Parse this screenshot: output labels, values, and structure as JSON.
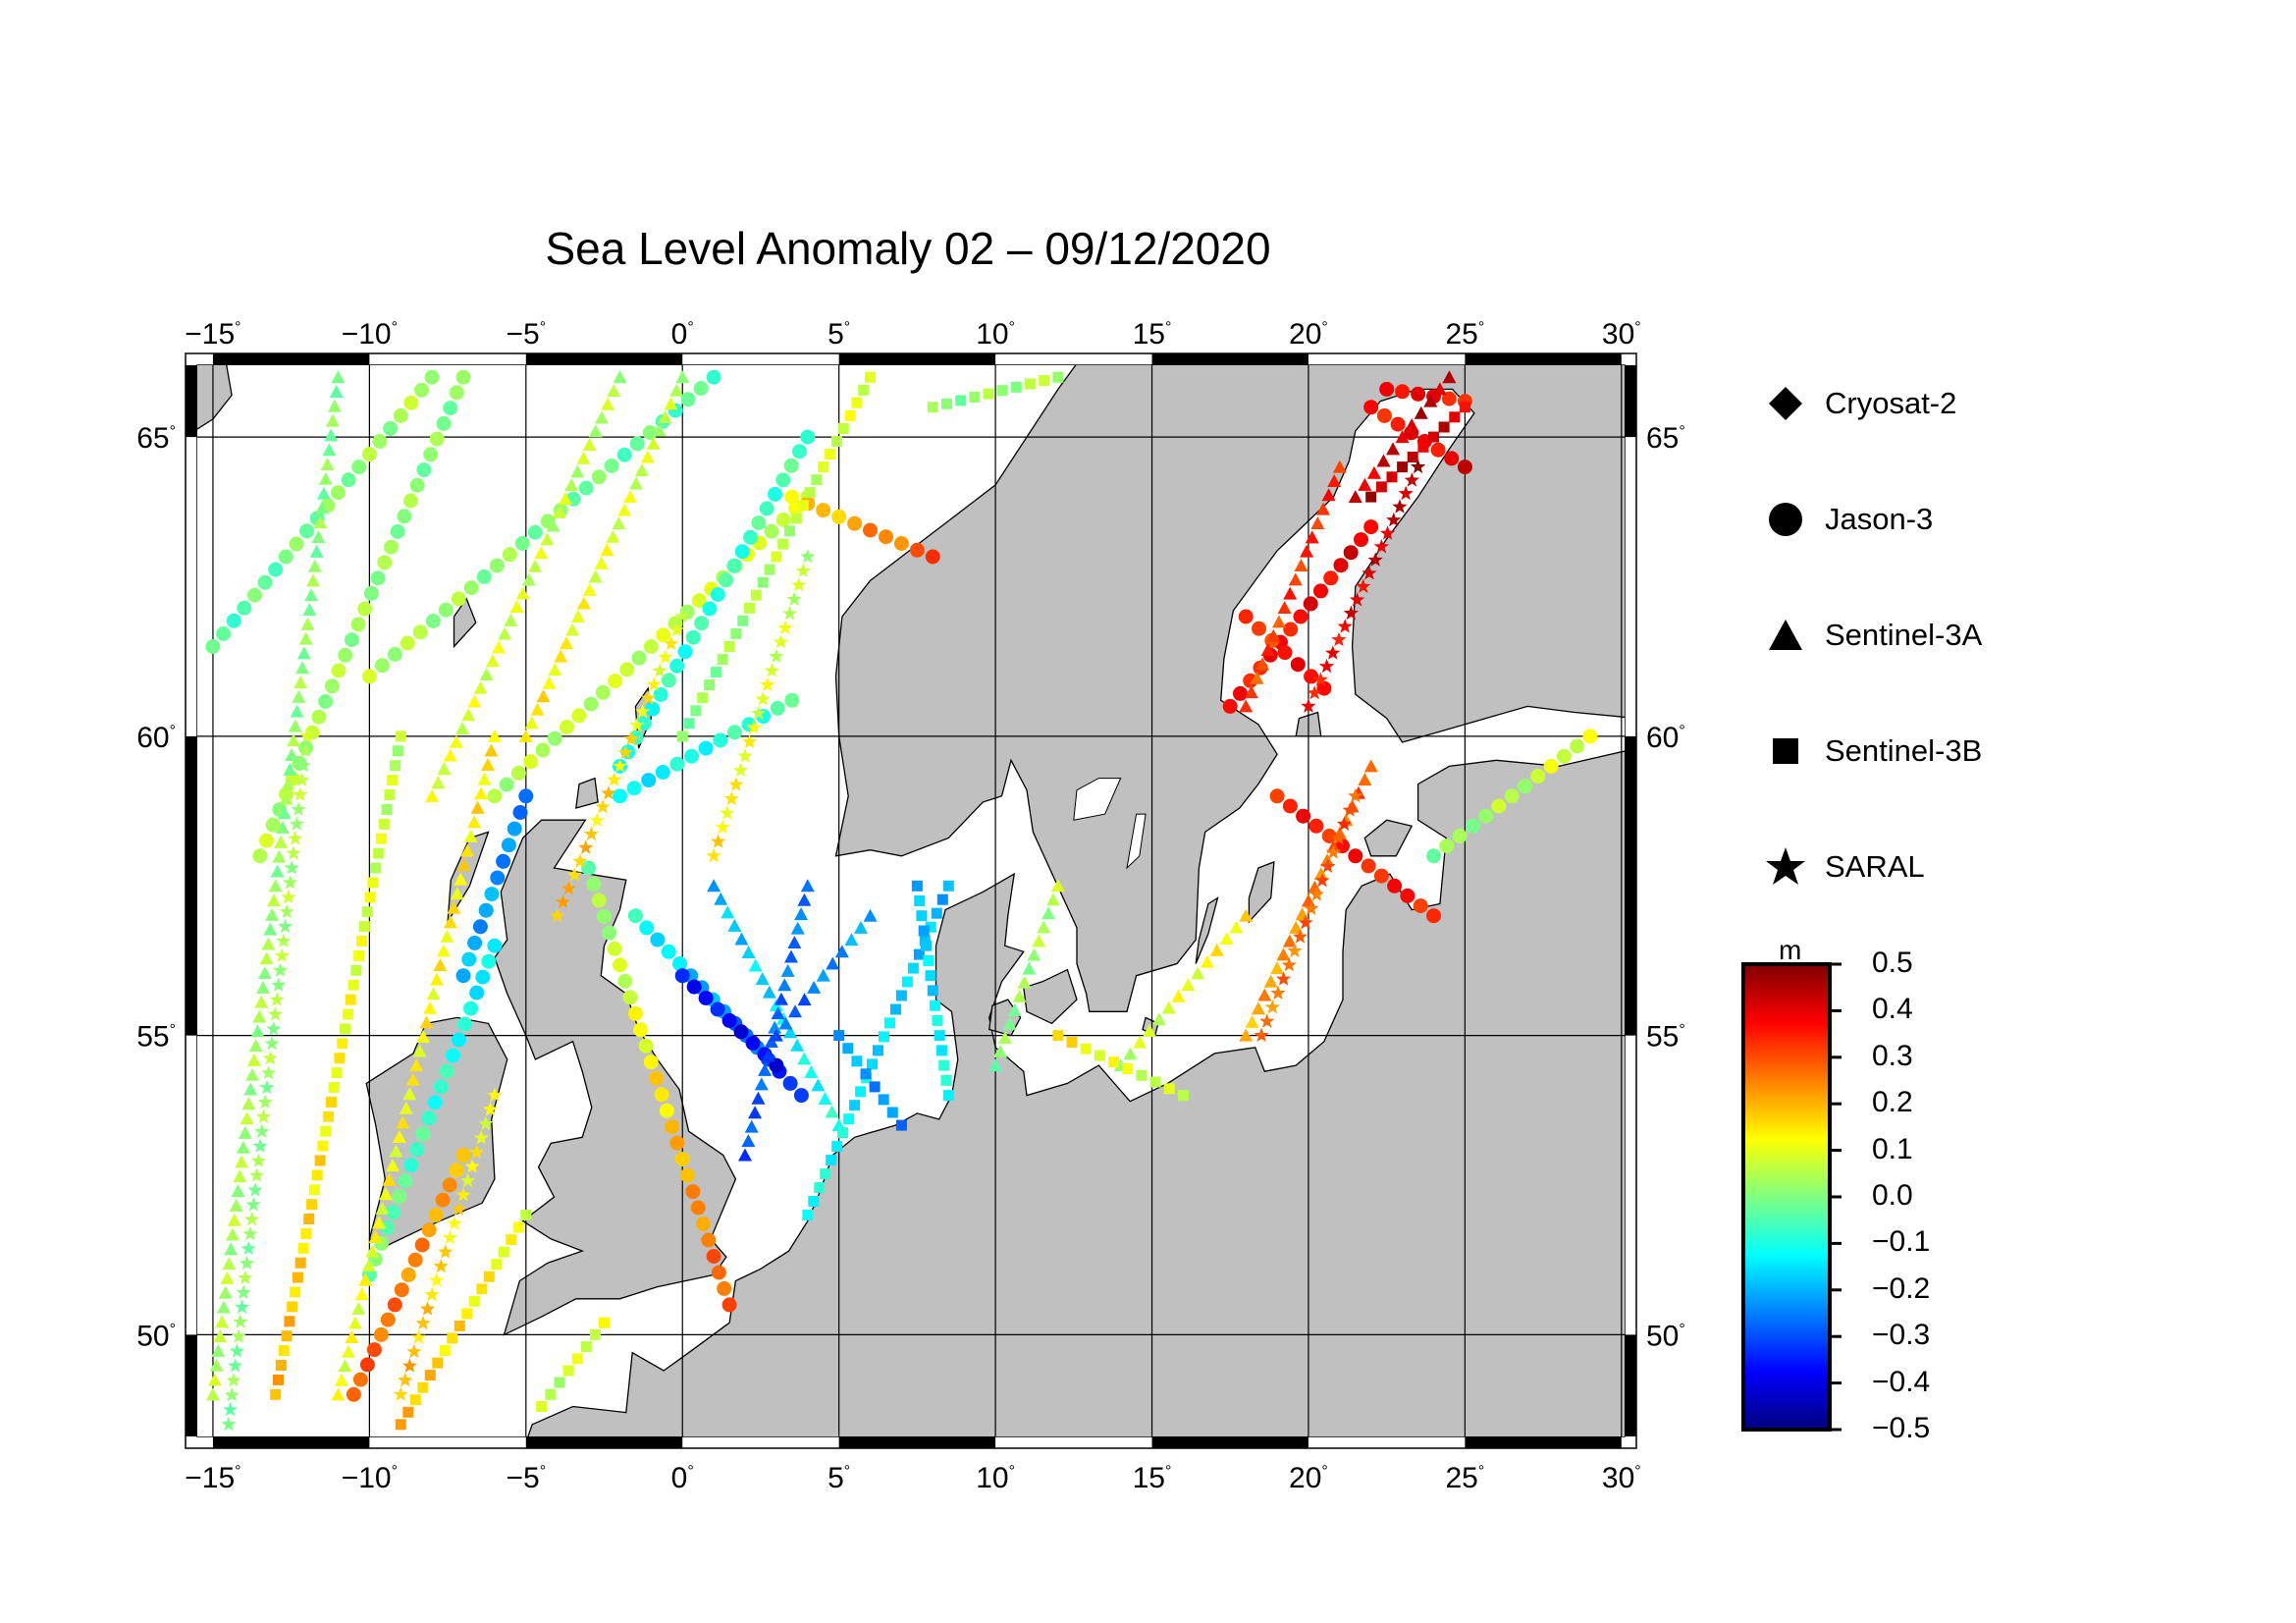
{
  "title": "Sea Level Anomaly 02 – 09/12/2020",
  "map": {
    "lon_range": [
      -15.5,
      30.1
    ],
    "lat_range": [
      48.3,
      66.2
    ],
    "lon_ticks": [
      {
        "value": -15,
        "label": "−15"
      },
      {
        "value": -10,
        "label": "−10"
      },
      {
        "value": -5,
        "label": "−5"
      },
      {
        "value": 0,
        "label": "0"
      },
      {
        "value": 5,
        "label": "5"
      },
      {
        "value": 10,
        "label": "10"
      },
      {
        "value": 15,
        "label": "15"
      },
      {
        "value": 20,
        "label": "20"
      },
      {
        "value": 25,
        "label": "25"
      },
      {
        "value": 30,
        "label": "30"
      }
    ],
    "lat_ticks": [
      {
        "value": 50,
        "label": "50"
      },
      {
        "value": 55,
        "label": "55"
      },
      {
        "value": 60,
        "label": "60"
      },
      {
        "value": 65,
        "label": "65"
      }
    ],
    "degree_symbol": "°",
    "land_color": "#c0c0c0",
    "sea_color": "#ffffff"
  },
  "legend": {
    "items": [
      {
        "label": "Cryosat-2",
        "symbol": "diamond"
      },
      {
        "label": "Jason-3",
        "symbol": "circle"
      },
      {
        "label": "Sentinel-3A",
        "symbol": "triangle"
      },
      {
        "label": "Sentinel-3B",
        "symbol": "square"
      },
      {
        "label": "SARAL",
        "symbol": "star"
      }
    ]
  },
  "colorbar": {
    "unit": "m",
    "min": -0.5,
    "max": 0.5,
    "labels": [
      "0.5",
      "0.4",
      "0.3",
      "0.2",
      "0.1",
      "0.0",
      "−0.1",
      "−0.2",
      "−0.3",
      "−0.4",
      "−0.5"
    ],
    "colors": [
      "#00007f",
      "#0000ff",
      "#0080ff",
      "#00ffff",
      "#80ff80",
      "#ffff00",
      "#ff8000",
      "#ff0000",
      "#7f0000"
    ]
  },
  "tracks": [
    {
      "sat": "circle",
      "lon": [
        -13.5,
        -7.0
      ],
      "lat": [
        58.0,
        66.0
      ],
      "sla": [
        0.05,
        0.0
      ]
    },
    {
      "sat": "circle",
      "lon": [
        -15.0,
        -8.0
      ],
      "lat": [
        61.5,
        66.0
      ],
      "sla": [
        -0.05,
        0.05
      ]
    },
    {
      "sat": "circle",
      "lon": [
        -10.0,
        1.0
      ],
      "lat": [
        61.0,
        66.0
      ],
      "sla": [
        0.05,
        -0.05
      ]
    },
    {
      "sat": "circle",
      "lon": [
        -6.0,
        4.0
      ],
      "lat": [
        59.0,
        64.0
      ],
      "sla": [
        0.05,
        0.08
      ]
    },
    {
      "sat": "circle",
      "lon": [
        -2.0,
        4.0
      ],
      "lat": [
        59.5,
        65.0
      ],
      "sla": [
        -0.1,
        -0.05
      ]
    },
    {
      "sat": "circle",
      "lon": [
        -10.0,
        -6.0
      ],
      "lat": [
        51.0,
        56.5
      ],
      "sla": [
        0.0,
        -0.15
      ]
    },
    {
      "sat": "circle",
      "lon": [
        -7.0,
        -5.0
      ],
      "lat": [
        56.0,
        59.0
      ],
      "sla": [
        -0.2,
        -0.25
      ]
    },
    {
      "sat": "circle",
      "lon": [
        -2.0,
        3.5
      ],
      "lat": [
        59.0,
        60.6
      ],
      "sla": [
        -0.15,
        -0.05
      ]
    },
    {
      "sat": "circle",
      "lon": [
        -1.5,
        3.8
      ],
      "lat": [
        57.0,
        54.0
      ],
      "sla": [
        -0.1,
        -0.35
      ]
    },
    {
      "sat": "circle",
      "lon": [
        0.0,
        3.0
      ],
      "lat": [
        56.0,
        54.5
      ],
      "sla": [
        -0.35,
        -0.4
      ]
    },
    {
      "sat": "circle",
      "lon": [
        -10.5,
        -7.0
      ],
      "lat": [
        49.0,
        53.0
      ],
      "sla": [
        0.3,
        0.2
      ]
    },
    {
      "sat": "circle",
      "lon": [
        -3.0,
        1.5
      ],
      "lat": [
        57.8,
        50.5
      ],
      "sla": [
        0.0,
        0.3
      ]
    },
    {
      "sat": "circle",
      "lon": [
        3.5,
        8.0
      ],
      "lat": [
        64.0,
        63.0
      ],
      "sla": [
        0.15,
        0.3
      ]
    },
    {
      "sat": "circle",
      "lon": [
        17.5,
        22.0
      ],
      "lat": [
        60.5,
        63.5
      ],
      "sla": [
        0.35,
        0.4
      ]
    },
    {
      "sat": "circle",
      "lon": [
        18.0,
        20.5
      ],
      "lat": [
        62.0,
        60.8
      ],
      "sla": [
        0.3,
        0.4
      ]
    },
    {
      "sat": "circle",
      "lon": [
        22.0,
        25.0
      ],
      "lat": [
        65.5,
        64.5
      ],
      "sla": [
        0.35,
        0.4
      ]
    },
    {
      "sat": "circle",
      "lon": [
        22.5,
        25.0
      ],
      "lat": [
        65.8,
        65.6
      ],
      "sla": [
        0.4,
        0.35
      ]
    },
    {
      "sat": "circle",
      "lon": [
        19.0,
        24.0
      ],
      "lat": [
        59.0,
        57.0
      ],
      "sla": [
        0.35,
        0.35
      ]
    },
    {
      "sat": "circle",
      "lon": [
        24.0,
        29.0
      ],
      "lat": [
        58.0,
        60.0
      ],
      "sla": [
        0.0,
        0.1
      ]
    },
    {
      "sat": "triangle",
      "lon": [
        -15.0,
        -11.0
      ],
      "lat": [
        49.0,
        66.0
      ],
      "sla": [
        0.05,
        0.0
      ]
    },
    {
      "sat": "triangle",
      "lon": [
        -11.0,
        -6.0
      ],
      "lat": [
        49.0,
        60.0
      ],
      "sla": [
        0.1,
        0.15
      ]
    },
    {
      "sat": "triangle",
      "lon": [
        -8.0,
        -2.0
      ],
      "lat": [
        59.0,
        66.0
      ],
      "sla": [
        0.1,
        0.05
      ]
    },
    {
      "sat": "triangle",
      "lon": [
        -5.0,
        0.0
      ],
      "lat": [
        60.0,
        66.0
      ],
      "sla": [
        0.15,
        0.05
      ]
    },
    {
      "sat": "triangle",
      "lon": [
        1.0,
        5.0
      ],
      "lat": [
        57.5,
        53.5
      ],
      "sla": [
        -0.2,
        -0.1
      ]
    },
    {
      "sat": "triangle",
      "lon": [
        2.0,
        4.0
      ],
      "lat": [
        53.0,
        57.5
      ],
      "sla": [
        -0.3,
        -0.25
      ]
    },
    {
      "sat": "triangle",
      "lon": [
        3.0,
        6.0
      ],
      "lat": [
        55.0,
        57.0
      ],
      "sla": [
        -0.3,
        -0.2
      ]
    },
    {
      "sat": "triangle",
      "lon": [
        18.0,
        21.0
      ],
      "lat": [
        60.5,
        64.5
      ],
      "sla": [
        0.3,
        0.35
      ]
    },
    {
      "sat": "triangle",
      "lon": [
        21.5,
        24.5
      ],
      "lat": [
        64.0,
        66.0
      ],
      "sla": [
        0.4,
        0.45
      ]
    },
    {
      "sat": "triangle",
      "lon": [
        18.0,
        22.0
      ],
      "lat": [
        55.0,
        59.5
      ],
      "sla": [
        0.2,
        0.3
      ]
    },
    {
      "sat": "triangle",
      "lon": [
        14.0,
        18.0
      ],
      "lat": [
        54.5,
        57.0
      ],
      "sla": [
        0.05,
        0.15
      ]
    },
    {
      "sat": "triangle",
      "lon": [
        10.0,
        12.0
      ],
      "lat": [
        54.5,
        57.5
      ],
      "sla": [
        0.0,
        0.05
      ]
    },
    {
      "sat": "square",
      "lon": [
        -13.0,
        -9.0
      ],
      "lat": [
        49.0,
        60.0
      ],
      "sla": [
        0.2,
        0.05
      ]
    },
    {
      "sat": "square",
      "lon": [
        -9.0,
        -5.0
      ],
      "lat": [
        48.5,
        52.0
      ],
      "sla": [
        0.2,
        0.1
      ]
    },
    {
      "sat": "square",
      "lon": [
        -4.5,
        -2.5
      ],
      "lat": [
        48.8,
        50.2
      ],
      "sla": [
        0.05,
        0.1
      ]
    },
    {
      "sat": "square",
      "lon": [
        0.0,
        6.0
      ],
      "lat": [
        60.0,
        66.0
      ],
      "sla": [
        0.0,
        0.1
      ]
    },
    {
      "sat": "square",
      "lon": [
        4.0,
        8.5
      ],
      "lat": [
        52.0,
        57.5
      ],
      "sla": [
        -0.1,
        -0.2
      ]
    },
    {
      "sat": "square",
      "lon": [
        5.0,
        7.0
      ],
      "lat": [
        55.0,
        53.5
      ],
      "sla": [
        -0.2,
        -0.25
      ]
    },
    {
      "sat": "square",
      "lon": [
        7.5,
        8.5
      ],
      "lat": [
        57.5,
        54.0
      ],
      "sla": [
        -0.2,
        -0.1
      ]
    },
    {
      "sat": "square",
      "lon": [
        12.0,
        16.0
      ],
      "lat": [
        55.0,
        54.0
      ],
      "sla": [
        0.15,
        0.05
      ]
    },
    {
      "sat": "square",
      "lon": [
        8.0,
        12.0
      ],
      "lat": [
        65.5,
        66.0
      ],
      "sla": [
        0.0,
        0.05
      ]
    },
    {
      "sat": "square",
      "lon": [
        22.0,
        25.0
      ],
      "lat": [
        64.0,
        65.5
      ],
      "sla": [
        0.45,
        0.4
      ]
    },
    {
      "sat": "star",
      "lon": [
        -14.5,
        -12.0
      ],
      "lat": [
        48.5,
        60.0
      ],
      "sla": [
        0.0,
        0.05
      ]
    },
    {
      "sat": "star",
      "lon": [
        -9.0,
        -6.0
      ],
      "lat": [
        49.0,
        54.0
      ],
      "sla": [
        0.2,
        0.1
      ]
    },
    {
      "sat": "star",
      "lon": [
        -4.0,
        0.0
      ],
      "lat": [
        57.0,
        62.0
      ],
      "sla": [
        0.2,
        0.1
      ]
    },
    {
      "sat": "star",
      "lon": [
        1.0,
        4.0
      ],
      "lat": [
        58.0,
        63.0
      ],
      "sla": [
        0.15,
        0.05
      ]
    },
    {
      "sat": "star",
      "lon": [
        18.5,
        21.5
      ],
      "lat": [
        55.0,
        59.0
      ],
      "sla": [
        0.25,
        0.3
      ]
    },
    {
      "sat": "star",
      "lon": [
        20.0,
        23.5
      ],
      "lat": [
        60.5,
        64.5
      ],
      "sla": [
        0.35,
        0.45
      ]
    }
  ]
}
